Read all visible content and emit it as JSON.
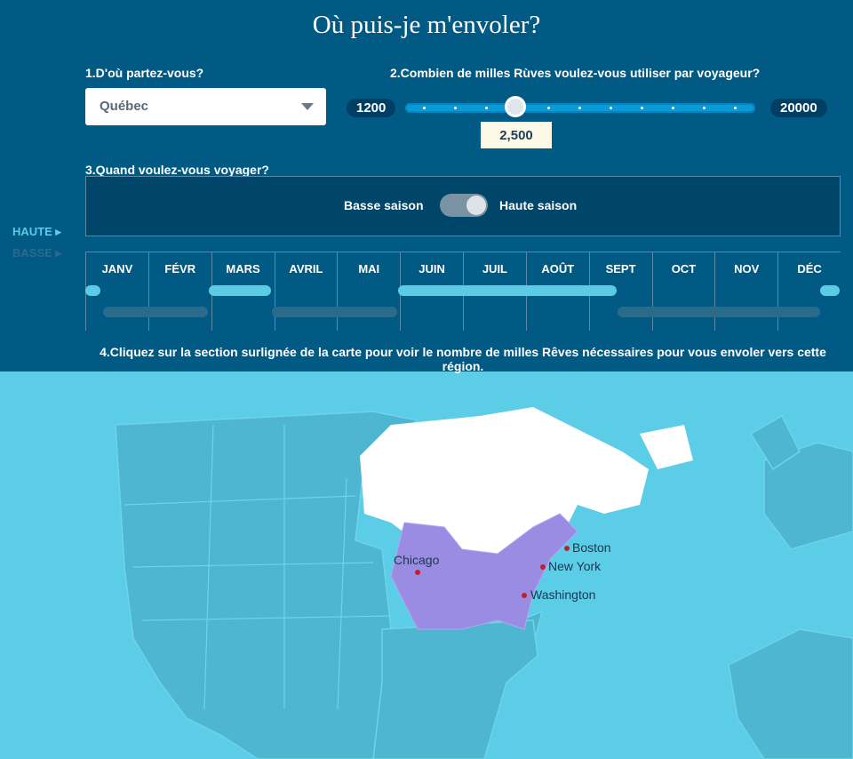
{
  "title": "Où puis-je m'envoler?",
  "step1": {
    "label": "1.D'où partez-vous?",
    "value": "Québec"
  },
  "step2": {
    "label": "2.Combien de milles Rùves voulez-vous utiliser par voyageur?",
    "min": "1200",
    "max": "20000",
    "value": "2,500"
  },
  "step3": {
    "label": "3.Quand voulez-vous voyager?",
    "low_label": "Basse saison",
    "high_label": "Haute saison",
    "toggle_state": "haute"
  },
  "legend": {
    "high": "HAUTE",
    "low": "BASSE"
  },
  "months": [
    "JANV",
    "FÉVR",
    "MARS",
    "AVRIL",
    "MAI",
    "JUIN",
    "JUIL",
    "AOÛT",
    "SEPT",
    "OCT",
    "NOV",
    "DÉC"
  ],
  "step4": {
    "label": "4.Cliquez sur la section surlignée de la carte pour voir le nombre de milles Rêves nécessaires pour vous envoler vers cette région."
  },
  "cities": [
    "Chicago",
    "Boston",
    "New York",
    "Washington"
  ],
  "colors": {
    "header": "#005a84",
    "ocean": "#5ccde6",
    "land": "#4fb6d2",
    "highlight": "#9a8ce2",
    "high_bar": "#5ccbe6",
    "low_bar": "#2a6b8c"
  }
}
